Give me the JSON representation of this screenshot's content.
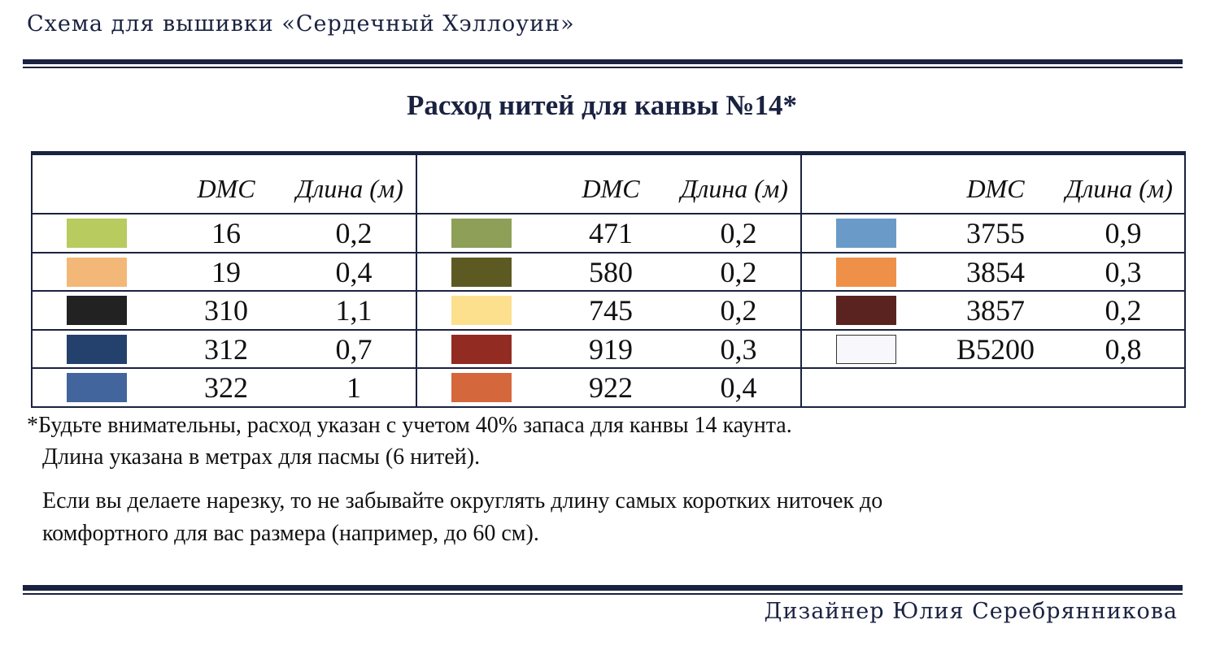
{
  "header": {
    "title": "Схема для вышивки «Сердечный Хэллоуин»"
  },
  "section_title": "Расход нитей для канвы №14*",
  "table": {
    "groups": [
      {
        "header": [
          "DMC",
          "Длина (м)"
        ],
        "rows": [
          {
            "color": "#b7cb5e",
            "code": "16",
            "length": "0,2"
          },
          {
            "color": "#f3b878",
            "code": "19",
            "length": "0,4"
          },
          {
            "color": "#222222",
            "code": "310",
            "length": "1,1"
          },
          {
            "color": "#24416d",
            "code": "312",
            "length": "0,7"
          },
          {
            "color": "#41659c",
            "code": "322",
            "length": "1"
          }
        ]
      },
      {
        "header": [
          "DMC",
          "Длина (м)"
        ],
        "rows": [
          {
            "color": "#8e9f57",
            "code": "471",
            "length": "0,2"
          },
          {
            "color": "#5c5a22",
            "code": "580",
            "length": "0,2"
          },
          {
            "color": "#fde08e",
            "code": "745",
            "length": "0,2"
          },
          {
            "color": "#922b22",
            "code": "919",
            "length": "0,3"
          },
          {
            "color": "#d5673d",
            "code": "922",
            "length": "0,4"
          }
        ]
      },
      {
        "header": [
          "DMC",
          "Длина (м)"
        ],
        "rows": [
          {
            "color": "#6a9bc8",
            "code": "3755",
            "length": "0,9"
          },
          {
            "color": "#ef9049",
            "code": "3854",
            "length": "0,3"
          },
          {
            "color": "#5a2320",
            "code": "3857",
            "length": "0,2"
          },
          {
            "color": "#f8f8fc",
            "code": "B5200",
            "length": "0,8"
          }
        ]
      }
    ]
  },
  "notes": [
    "*Будьте внимательны, расход указан с учетом 40% запаса для канвы 14 каунта.",
    "Длина указана в метрах для пасмы (6 нитей).",
    "Если вы делаете нарезку, то не забывайте округлять длину самых коротких ниточек до",
    "комфортного для вас размера (например, до 60 см)."
  ],
  "footer": {
    "designer": "Дизайнер Юлия Серебрянникова"
  }
}
